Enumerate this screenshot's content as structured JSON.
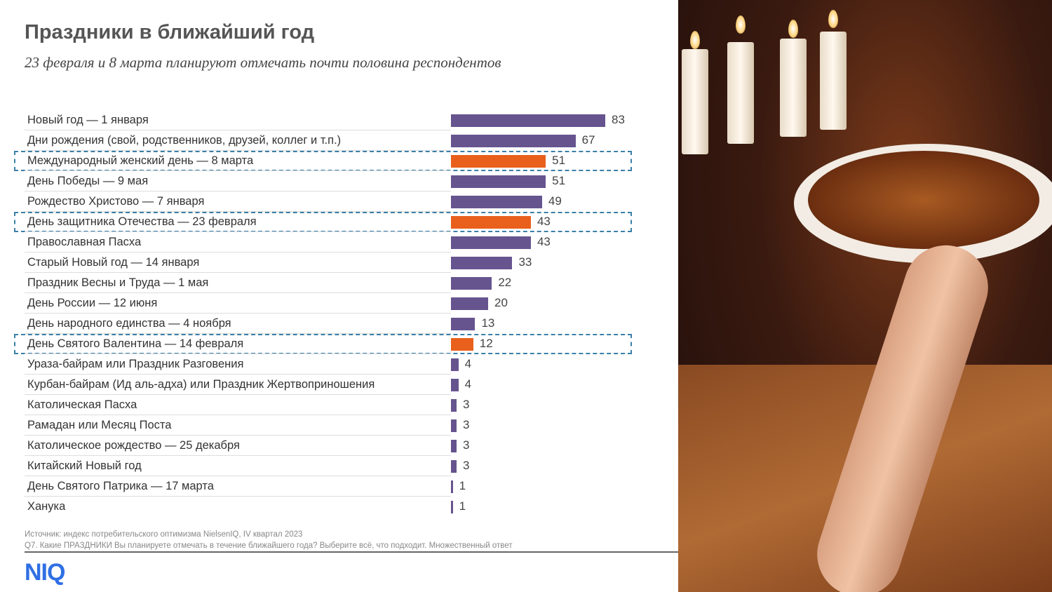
{
  "header": {
    "title": "Праздники в ближайший год",
    "subtitle": "23 февраля и 8 марта планируют отмечать почти половина респондентов"
  },
  "chart_data": {
    "type": "bar",
    "orientation": "horizontal",
    "title": "Праздники в ближайший год",
    "xlim": [
      0,
      100
    ],
    "colors": {
      "default": "#66548f",
      "highlight": "#e8601c",
      "highlight_border": "#3b7fa8"
    },
    "categories": [
      "Новый год — 1 января",
      "Дни рождения (свой, родственников, друзей, коллег и т.п.)",
      "Международный женский день — 8 марта",
      "День Победы — 9 мая",
      "Рождество Христово — 7 января",
      "День защитника Отечества — 23 февраля",
      "Православная Пасха",
      "Старый Новый год — 14 января",
      "Праздник Весны и Труда — 1 мая",
      "День России — 12 июня",
      "День народного единства — 4 ноября",
      "День Святого Валентина — 14 февраля",
      "Ураза-байрам или Праздник Разговения",
      "Курбан-байрам (Ид аль-адха) или Праздник Жертвоприношения",
      "Католическая Пасха",
      "Рамадан или Месяц Поста",
      "Католическое рождество — 25 декабря",
      "Китайский Новый год",
      "День Святого Патрика — 17 марта",
      "Ханука"
    ],
    "values": [
      83,
      67,
      51,
      51,
      49,
      43,
      43,
      33,
      22,
      20,
      13,
      12,
      4,
      4,
      3,
      3,
      3,
      3,
      1,
      1
    ],
    "highlighted": [
      false,
      false,
      true,
      false,
      false,
      true,
      false,
      false,
      false,
      false,
      false,
      true,
      false,
      false,
      false,
      false,
      false,
      false,
      false,
      false
    ]
  },
  "footer": {
    "source": "Источник: индекс потребительского оптимизма NielsenIQ, IV квартал 2023",
    "question": "Q7. Какие ПРАЗДНИКИ Вы планируете отмечать в течение ближайшего года? Выберите всё, что подходит. Множественный ответ",
    "logo": "NIQ"
  }
}
